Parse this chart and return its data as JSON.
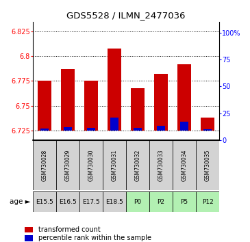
{
  "title": "GDS5528 / ILMN_2477036",
  "samples": [
    "GSM730028",
    "GSM730029",
    "GSM730030",
    "GSM730031",
    "GSM730032",
    "GSM730033",
    "GSM730034",
    "GSM730035"
  ],
  "age_labels": [
    "E15.5",
    "E16.5",
    "E17.5",
    "E18.5",
    "P0",
    "P2",
    "P5",
    "P12"
  ],
  "age_colors": [
    "#d3d3d3",
    "#d3d3d3",
    "#d3d3d3",
    "#d3d3d3",
    "#b2f0b2",
    "#b2f0b2",
    "#b2f0b2",
    "#b2f0b2"
  ],
  "transformed_count": [
    6.775,
    6.787,
    6.775,
    6.808,
    6.768,
    6.782,
    6.792,
    6.738
  ],
  "percentile_rank": [
    1.5,
    3.0,
    2.0,
    12.0,
    2.5,
    4.0,
    8.0,
    1.0
  ],
  "bar_bottom": 6.725,
  "ylim_left": [
    6.715,
    6.835
  ],
  "ylim_right": [
    0,
    110
  ],
  "yticks_left": [
    6.725,
    6.75,
    6.775,
    6.8,
    6.825
  ],
  "yticks_right": [
    0,
    25,
    50,
    75,
    100
  ],
  "ytick_labels_right": [
    "0",
    "25",
    "50",
    "75",
    "100%"
  ],
  "red_color": "#cc0000",
  "blue_color": "#0000cc",
  "sample_bg_color": "#d3d3d3",
  "title_fontsize": 9.5,
  "tick_fontsize": 7,
  "sample_fontsize": 5.5,
  "age_fontsize": 6.5,
  "legend_fontsize": 7
}
